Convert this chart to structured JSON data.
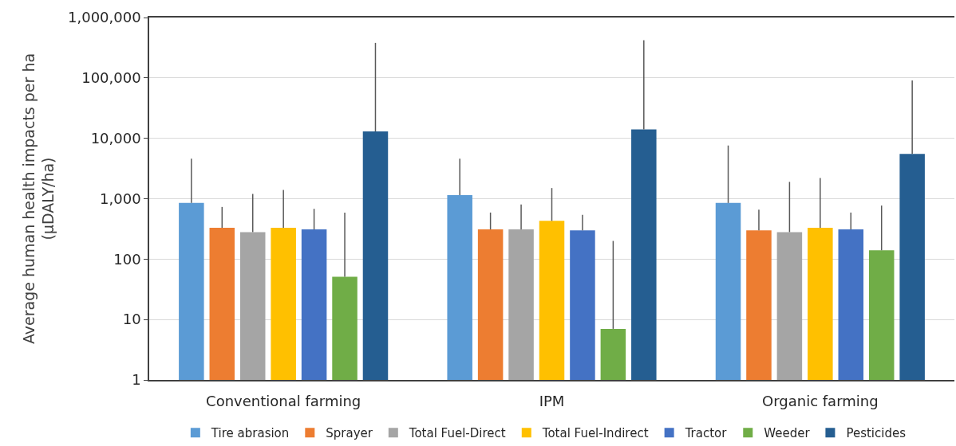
{
  "chart_data": {
    "type": "bar",
    "ylabel": "Average human health impacts per ha\n(µDALY/ha)",
    "categories": [
      "Conventional farming",
      "IPM",
      "Organic farming"
    ],
    "series": [
      {
        "name": "Tire abrasion",
        "color": "#5b9bd5",
        "values": [
          850,
          1150,
          850
        ],
        "errors": [
          [
            850,
            4600
          ],
          [
            1150,
            4600
          ],
          [
            850,
            7600
          ]
        ]
      },
      {
        "name": "Sprayer",
        "color": "#ed7d31",
        "values": [
          330,
          310,
          300
        ],
        "errors": [
          [
            330,
            730
          ],
          [
            310,
            590
          ],
          [
            300,
            660
          ]
        ]
      },
      {
        "name": "Total Fuel-Direct",
        "color": "#a5a5a5",
        "values": [
          280,
          310,
          280
        ],
        "errors": [
          [
            280,
            1200
          ],
          [
            310,
            800
          ],
          [
            280,
            1900
          ]
        ]
      },
      {
        "name": "Total Fuel-Indirect",
        "color": "#ffc000",
        "values": [
          330,
          430,
          330
        ],
        "errors": [
          [
            330,
            1400
          ],
          [
            430,
            1500
          ],
          [
            330,
            2200
          ]
        ]
      },
      {
        "name": "Tractor",
        "color": "#4472c4",
        "values": [
          310,
          300,
          310
        ],
        "errors": [
          [
            310,
            680
          ],
          [
            300,
            540
          ],
          [
            310,
            590
          ]
        ]
      },
      {
        "name": "Weeder",
        "color": "#70ad47",
        "values": [
          51,
          7,
          140
        ],
        "errors": [
          [
            51,
            590
          ],
          [
            7,
            200
          ],
          [
            140,
            770
          ]
        ]
      },
      {
        "name": "Pesticides",
        "color": "#255e91",
        "values": [
          13000,
          14000,
          5500
        ],
        "errors": [
          [
            13000,
            380000
          ],
          [
            14000,
            420000
          ],
          [
            5500,
            91000
          ]
        ]
      }
    ],
    "log": true,
    "ylim": [
      1,
      1000000
    ],
    "yticks": [
      1,
      10,
      100,
      {
        "value": 1000,
        "label": "1,000"
      },
      {
        "value": 10000,
        "label": "10,000"
      },
      {
        "value": 100000,
        "label": "100,000"
      },
      {
        "value": 1000000,
        "label": "1,000,000"
      }
    ],
    "grid": "y",
    "legend": "bottom"
  }
}
